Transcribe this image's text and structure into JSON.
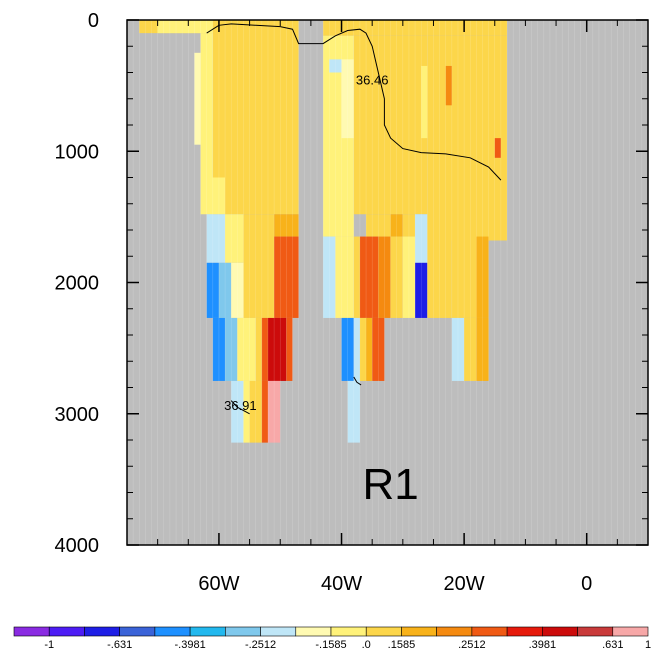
{
  "chart_data": {
    "type": "heatmap",
    "title": "",
    "xlabel": "",
    "ylabel": "",
    "panel_label": "R1",
    "x_axis": {
      "range_deg_east": [
        -75,
        10
      ],
      "ticks": [
        {
          "value": -60,
          "label": "60W"
        },
        {
          "value": -40,
          "label": "40W"
        },
        {
          "value": -20,
          "label": "20W"
        },
        {
          "value": 0,
          "label": "0"
        }
      ],
      "minor_step": 5
    },
    "y_axis": {
      "range": [
        0,
        4000
      ],
      "reversed": true,
      "ticks": [
        {
          "value": 0,
          "label": "0"
        },
        {
          "value": 1000,
          "label": "1000"
        },
        {
          "value": 2000,
          "label": "2000"
        },
        {
          "value": 3000,
          "label": "3000"
        },
        {
          "value": 4000,
          "label": "4000"
        }
      ],
      "minor_step": 200
    },
    "missing_color": "#bdbdbd",
    "colorbar": {
      "colors": [
        "#8a2be2",
        "#4d1cf5",
        "#1e1ee6",
        "#3a63d8",
        "#1e90ff",
        "#22b8ee",
        "#7fc8ec",
        "#bfe6f7",
        "#fffab2",
        "#fff27a",
        "#fcd64a",
        "#f8b21a",
        "#f58a10",
        "#f05a14",
        "#e61a0c",
        "#cc0b0b",
        "#c93a3a",
        "#f7a8a8"
      ],
      "labels": [
        "-1",
        "-.631",
        "-.3981",
        "-.2512",
        "-.1585",
        ".0",
        ".1585",
        ".2512",
        ".3981",
        ".631",
        "1"
      ],
      "bounds": [
        -1.5849,
        -1,
        -0.7943,
        -0.631,
        -0.5012,
        -0.3981,
        -0.3162,
        -0.2512,
        -0.1995,
        -0.1585,
        0,
        0.1585,
        0.1995,
        0.2512,
        0.3162,
        0.3981,
        0.5012,
        0.631,
        1
      ]
    },
    "field": [
      {
        "x": [
          -73,
          -48
        ],
        "y": [
          0,
          100
        ],
        "v": 0.08
      },
      {
        "x": [
          -70,
          -66
        ],
        "y": [
          0,
          100
        ],
        "v": -0.1
      },
      {
        "x": [
          -66,
          -61
        ],
        "y": [
          0,
          100
        ],
        "v": -0.1
      },
      {
        "x": [
          -61,
          -47
        ],
        "y": [
          0,
          1480
        ],
        "v": 0.08
      },
      {
        "x": [
          -63,
          -61
        ],
        "y": [
          100,
          1480
        ],
        "v": -0.1
      },
      {
        "x": [
          -64,
          -63
        ],
        "y": [
          250,
          950
        ],
        "v": -0.16
      },
      {
        "x": [
          -62,
          -59
        ],
        "y": [
          1200,
          1480
        ],
        "v": -0.1
      },
      {
        "x": [
          -62,
          -59
        ],
        "y": [
          1480,
          1850
        ],
        "v": -0.2
      },
      {
        "x": [
          -59,
          -56
        ],
        "y": [
          1480,
          1850
        ],
        "v": -0.12
      },
      {
        "x": [
          -56,
          -51
        ],
        "y": [
          1480,
          2270
        ],
        "v": 0.08
      },
      {
        "x": [
          -51,
          -47
        ],
        "y": [
          1480,
          1650
        ],
        "v": 0.18
      },
      {
        "x": [
          -51,
          -47
        ],
        "y": [
          1650,
          2270
        ],
        "v": 0.28
      },
      {
        "x": [
          -62,
          -60
        ],
        "y": [
          1850,
          2270
        ],
        "v": -0.5
      },
      {
        "x": [
          -60,
          -58
        ],
        "y": [
          1850,
          2270
        ],
        "v": -0.3
      },
      {
        "x": [
          -58,
          -56
        ],
        "y": [
          1850,
          2270
        ],
        "v": -0.17
      },
      {
        "x": [
          -61,
          -59
        ],
        "y": [
          2270,
          2750
        ],
        "v": -0.5
      },
      {
        "x": [
          -59,
          -57
        ],
        "y": [
          2270,
          2750
        ],
        "v": -0.3
      },
      {
        "x": [
          -57,
          -54
        ],
        "y": [
          2270,
          2750
        ],
        "v": -0.12
      },
      {
        "x": [
          -54,
          -53
        ],
        "y": [
          2270,
          2750
        ],
        "v": 0.08
      },
      {
        "x": [
          -53,
          -52
        ],
        "y": [
          2270,
          2750
        ],
        "v": 0.28
      },
      {
        "x": [
          -52,
          -49
        ],
        "y": [
          2270,
          2750
        ],
        "v": 0.5
      },
      {
        "x": [
          -49,
          -48
        ],
        "y": [
          2270,
          2750
        ],
        "v": 0.3
      },
      {
        "x": [
          -58,
          -56
        ],
        "y": [
          2750,
          3220
        ],
        "v": -0.23
      },
      {
        "x": [
          -56,
          -55
        ],
        "y": [
          2750,
          3220
        ],
        "v": -0.1
      },
      {
        "x": [
          -55,
          -53
        ],
        "y": [
          2750,
          3220
        ],
        "v": 0.08
      },
      {
        "x": [
          -53,
          -52
        ],
        "y": [
          2750,
          3220
        ],
        "v": 0.3
      },
      {
        "x": [
          -52,
          -50
        ],
        "y": [
          2750,
          3220
        ],
        "v": 0.7
      },
      {
        "x": [
          -43,
          -13
        ],
        "y": [
          0,
          120
        ],
        "v": 0.08
      },
      {
        "x": [
          -43,
          -38
        ],
        "y": [
          120,
          1650
        ],
        "v": -0.12
      },
      {
        "x": [
          -42,
          -40
        ],
        "y": [
          300,
          400
        ],
        "v": -0.2
      },
      {
        "x": [
          -40,
          -38
        ],
        "y": [
          300,
          900
        ],
        "v": -0.16
      },
      {
        "x": [
          -38,
          -26
        ],
        "y": [
          120,
          1480
        ],
        "v": 0.08
      },
      {
        "x": [
          -26,
          -13
        ],
        "y": [
          120,
          1680
        ],
        "v": 0.08
      },
      {
        "x": [
          -27,
          -26
        ],
        "y": [
          350,
          900
        ],
        "v": -0.1
      },
      {
        "x": [
          -23,
          -22
        ],
        "y": [
          350,
          650
        ],
        "v": 0.2
      },
      {
        "x": [
          -15,
          -14
        ],
        "y": [
          900,
          1050
        ],
        "v": 0.3
      },
      {
        "x": [
          -36,
          -32
        ],
        "y": [
          1480,
          1650
        ],
        "v": 0.08
      },
      {
        "x": [
          -32,
          -30
        ],
        "y": [
          1480,
          1650
        ],
        "v": 0.18
      },
      {
        "x": [
          -30,
          -28
        ],
        "y": [
          1480,
          1650
        ],
        "v": 0.08
      },
      {
        "x": [
          -28,
          -26
        ],
        "y": [
          1480,
          1850
        ],
        "v": -0.2
      },
      {
        "x": [
          -43,
          -41
        ],
        "y": [
          1650,
          2270
        ],
        "v": -0.2
      },
      {
        "x": [
          -41,
          -38
        ],
        "y": [
          1650,
          2270
        ],
        "v": -0.12
      },
      {
        "x": [
          -38,
          -37
        ],
        "y": [
          1650,
          2270
        ],
        "v": 0.08
      },
      {
        "x": [
          -37,
          -34
        ],
        "y": [
          1650,
          2270
        ],
        "v": 0.3
      },
      {
        "x": [
          -34,
          -32
        ],
        "y": [
          1650,
          2270
        ],
        "v": 0.22
      },
      {
        "x": [
          -32,
          -30
        ],
        "y": [
          1650,
          2270
        ],
        "v": 0.08
      },
      {
        "x": [
          -30,
          -28
        ],
        "y": [
          1650,
          2270
        ],
        "v": -0.1
      },
      {
        "x": [
          -28,
          -26
        ],
        "y": [
          1850,
          2270
        ],
        "v": -0.7
      },
      {
        "x": [
          -26,
          -22
        ],
        "y": [
          1480,
          2270
        ],
        "v": 0.08
      },
      {
        "x": [
          -22,
          -17
        ],
        "y": [
          1480,
          2270
        ],
        "v": 0.08
      },
      {
        "x": [
          -18,
          -16
        ],
        "y": [
          1650,
          2270
        ],
        "v": 0.18
      },
      {
        "x": [
          -40,
          -38
        ],
        "y": [
          2270,
          2750
        ],
        "v": -0.5
      },
      {
        "x": [
          -38,
          -37
        ],
        "y": [
          2270,
          2750
        ],
        "v": -0.2
      },
      {
        "x": [
          -37,
          -36
        ],
        "y": [
          2270,
          2750
        ],
        "v": 0.08
      },
      {
        "x": [
          -36,
          -35
        ],
        "y": [
          2270,
          2750
        ],
        "v": 0.18
      },
      {
        "x": [
          -35,
          -33
        ],
        "y": [
          2270,
          2750
        ],
        "v": 0.3
      },
      {
        "x": [
          -22,
          -20
        ],
        "y": [
          2270,
          2750
        ],
        "v": -0.23
      },
      {
        "x": [
          -20,
          -18
        ],
        "y": [
          2270,
          2750
        ],
        "v": 0.08
      },
      {
        "x": [
          -18,
          -16
        ],
        "y": [
          2270,
          2750
        ],
        "v": 0.18
      },
      {
        "x": [
          -39,
          -37
        ],
        "y": [
          2750,
          3220
        ],
        "v": -0.23
      }
    ],
    "contours": [
      {
        "label": "36.46",
        "points": [
          [
            -62,
            100
          ],
          [
            -60,
            40
          ],
          [
            -58,
            30
          ],
          [
            -54,
            40
          ],
          [
            -50,
            50
          ],
          [
            -48,
            70
          ],
          [
            -47,
            180
          ],
          [
            -43,
            180
          ],
          [
            -41,
            120
          ],
          [
            -39,
            80
          ],
          [
            -37,
            70
          ],
          [
            -36,
            100
          ],
          [
            -35,
            200
          ],
          [
            -34,
            400
          ],
          [
            -33,
            600
          ],
          [
            -33,
            800
          ],
          [
            -32,
            900
          ],
          [
            -30,
            980
          ],
          [
            -27,
            1010
          ],
          [
            -23,
            1020
          ],
          [
            -19,
            1050
          ],
          [
            -16,
            1120
          ],
          [
            -14,
            1220
          ]
        ],
        "label_at": [
          -35,
          490
        ]
      },
      {
        "label": "",
        "points": [
          [
            -38,
            2720
          ],
          [
            -37.5,
            2760
          ],
          [
            -36.8,
            2780
          ]
        ],
        "label_at": null
      },
      {
        "label": "36.91",
        "points": [
          [
            -58,
            2900
          ],
          [
            -57,
            2950
          ],
          [
            -55,
            3000
          ]
        ],
        "label_at": [
          -56.5,
          2970
        ]
      }
    ]
  }
}
